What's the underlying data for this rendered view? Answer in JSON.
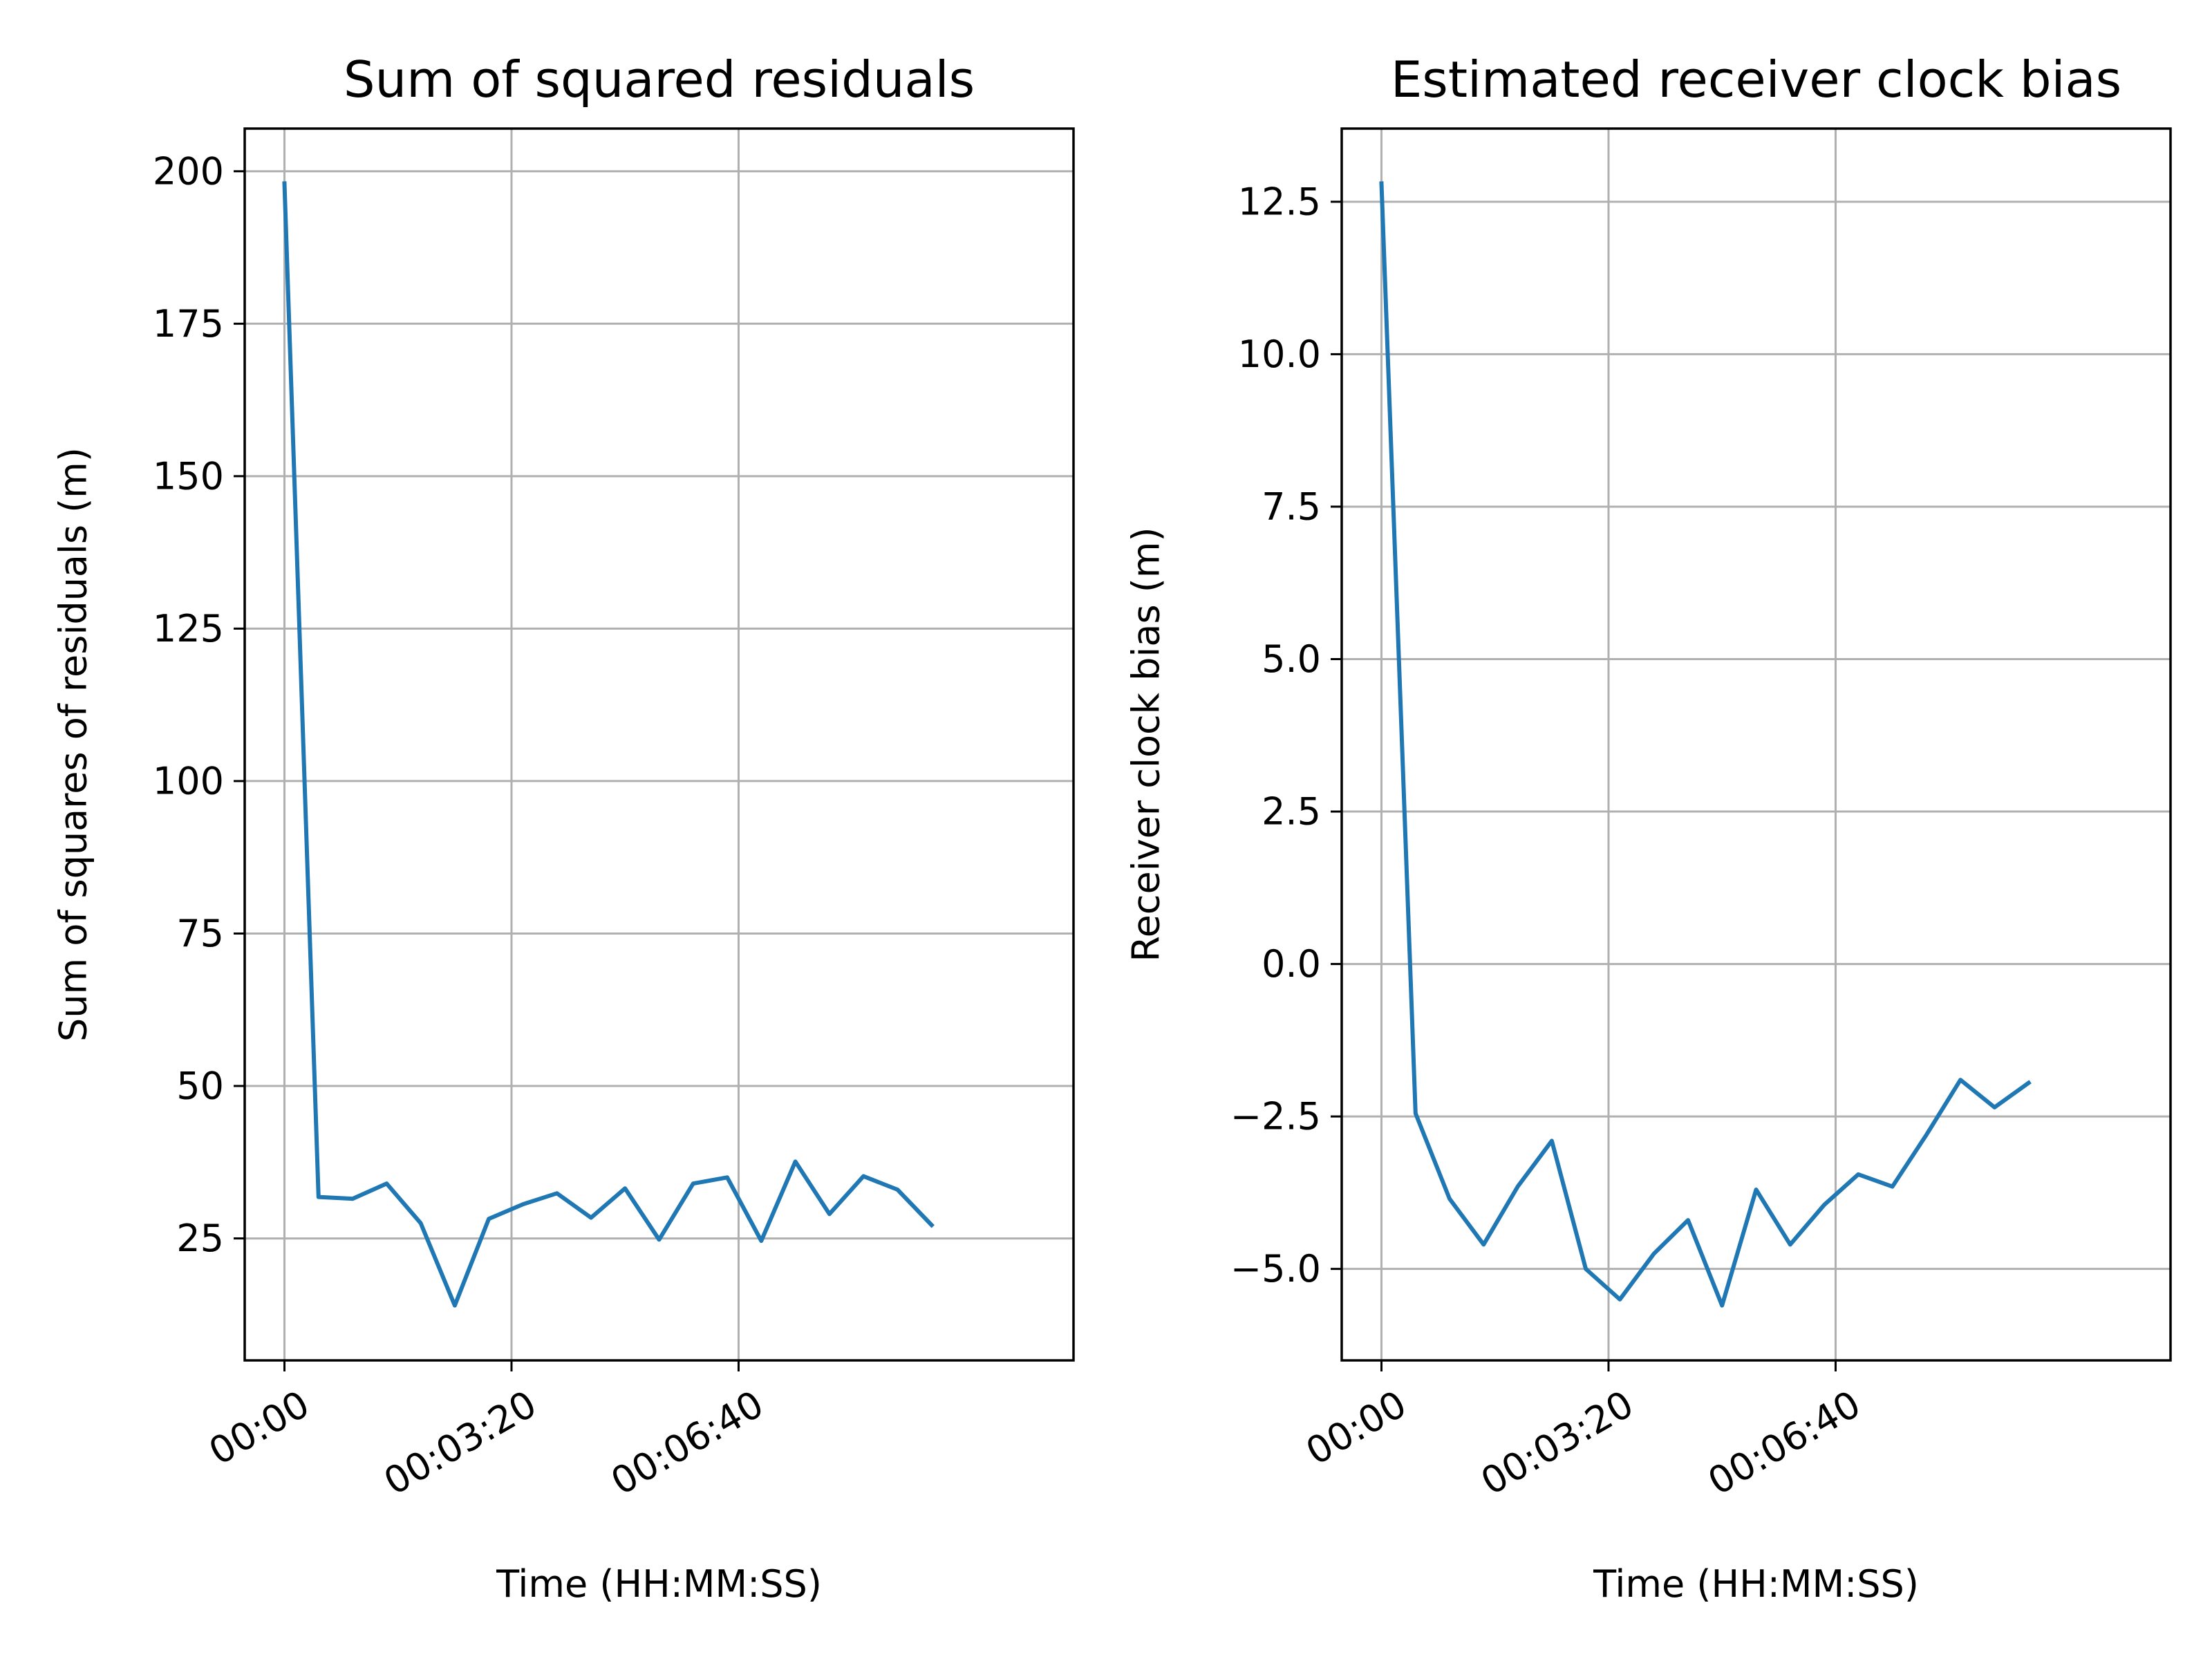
{
  "chart_data": [
    {
      "type": "line",
      "title": "Sum of squared residuals",
      "xlabel": "Time (HH:MM:SS)",
      "ylabel": "Sum of squares of residuals (m)",
      "x_unit": "seconds",
      "xlim": [
        -35,
        695
      ],
      "ylim": [
        5,
        207
      ],
      "grid": true,
      "xticks": [
        {
          "value": 0,
          "label": "00:00"
        },
        {
          "value": 200,
          "label": "00:03:20"
        },
        {
          "value": 400,
          "label": "00:06:40"
        }
      ],
      "yticks": [
        {
          "value": 25,
          "label": "25"
        },
        {
          "value": 50,
          "label": "50"
        },
        {
          "value": 75,
          "label": "75"
        },
        {
          "value": 100,
          "label": "100"
        },
        {
          "value": 125,
          "label": "125"
        },
        {
          "value": 150,
          "label": "150"
        },
        {
          "value": 175,
          "label": "175"
        },
        {
          "value": 200,
          "label": "200"
        }
      ],
      "color": "#1f77b4",
      "x": [
        0,
        30,
        60,
        90,
        120,
        150,
        180,
        210,
        240,
        270,
        300,
        330,
        360,
        390,
        420,
        450,
        480,
        510,
        540,
        570
      ],
      "y": [
        198,
        31.8,
        31.5,
        34,
        27.5,
        14,
        28.2,
        30.6,
        32.4,
        28.4,
        33.2,
        24.8,
        34,
        35,
        24.6,
        37.6,
        29,
        35.2,
        33,
        27.2
      ]
    },
    {
      "type": "line",
      "title": "Estimated receiver clock bias",
      "xlabel": "Time (HH:MM:SS)",
      "ylabel": "Receiver clock bias (m)",
      "x_unit": "seconds",
      "xlim": [
        -35,
        695
      ],
      "ylim": [
        -6.5,
        13.7
      ],
      "grid": true,
      "xticks": [
        {
          "value": 0,
          "label": "00:00"
        },
        {
          "value": 200,
          "label": "00:03:20"
        },
        {
          "value": 400,
          "label": "00:06:40"
        }
      ],
      "yticks": [
        {
          "value": -5,
          "label": "−5.0"
        },
        {
          "value": -2.5,
          "label": "−2.5"
        },
        {
          "value": 0,
          "label": "0.0"
        },
        {
          "value": 2.5,
          "label": "2.5"
        },
        {
          "value": 5,
          "label": "5.0"
        },
        {
          "value": 7.5,
          "label": "7.5"
        },
        {
          "value": 10,
          "label": "10.0"
        },
        {
          "value": 12.5,
          "label": "12.5"
        }
      ],
      "color": "#1f77b4",
      "x": [
        0,
        30,
        60,
        90,
        120,
        150,
        180,
        210,
        240,
        270,
        300,
        330,
        360,
        390,
        420,
        450,
        480,
        510,
        540,
        570
      ],
      "y": [
        12.8,
        -2.45,
        -3.85,
        -4.6,
        -3.65,
        -2.9,
        -5.0,
        -5.5,
        -4.75,
        -4.2,
        -5.6,
        -3.7,
        -4.6,
        -3.95,
        -3.45,
        -3.65,
        -2.8,
        -1.9,
        -2.35,
        -1.95
      ]
    }
  ]
}
